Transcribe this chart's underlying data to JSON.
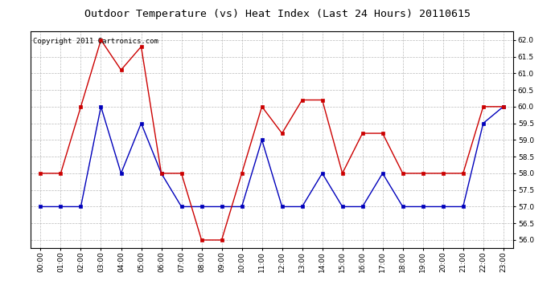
{
  "title": "Outdoor Temperature (vs) Heat Index (Last 24 Hours) 20110615",
  "copyright": "Copyright 2011 Cartronics.com",
  "x_labels": [
    "00:00",
    "01:00",
    "02:00",
    "03:00",
    "04:00",
    "05:00",
    "06:00",
    "07:00",
    "08:00",
    "09:00",
    "10:00",
    "11:00",
    "12:00",
    "13:00",
    "14:00",
    "15:00",
    "16:00",
    "17:00",
    "18:00",
    "19:00",
    "20:00",
    "21:00",
    "22:00",
    "23:00"
  ],
  "blue_values": [
    57.0,
    57.0,
    57.0,
    60.0,
    58.0,
    59.5,
    58.0,
    57.0,
    57.0,
    57.0,
    57.0,
    59.0,
    57.0,
    57.0,
    58.0,
    57.0,
    57.0,
    58.0,
    57.0,
    57.0,
    57.0,
    57.0,
    59.5,
    60.0
  ],
  "red_values": [
    58.0,
    58.0,
    60.0,
    62.0,
    61.1,
    61.8,
    58.0,
    58.0,
    56.0,
    56.0,
    58.0,
    60.0,
    59.2,
    60.2,
    60.2,
    58.0,
    59.2,
    59.2,
    58.0,
    58.0,
    58.0,
    58.0,
    60.0,
    60.0
  ],
  "ylim": [
    55.75,
    62.25
  ],
  "yticks": [
    56.0,
    56.5,
    57.0,
    57.5,
    58.0,
    58.5,
    59.0,
    59.5,
    60.0,
    60.5,
    61.0,
    61.5,
    62.0
  ],
  "blue_color": "#0000bb",
  "red_color": "#cc0000",
  "background_color": "#ffffff",
  "plot_bg_color": "#ffffff",
  "grid_color": "#aaaaaa",
  "title_fontsize": 9.5,
  "copyright_fontsize": 6.5,
  "tick_fontsize": 6.5,
  "marker": "s",
  "marker_size": 2.5,
  "line_width": 1.0
}
